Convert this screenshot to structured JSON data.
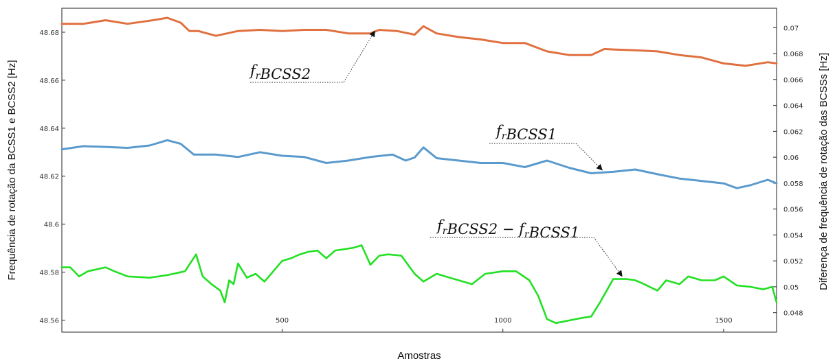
{
  "chart_data": {
    "type": "line",
    "xlabel": "Amostras",
    "ylabel_left": "Frequência de rotação da BCSS1 e BCSS2 [Hz]",
    "ylabel_right": "Diferença de frequência de rotação das BCSSs [Hz]",
    "xlim": [
      1,
      1620
    ],
    "ylim_left": [
      48.555,
      48.69
    ],
    "ylim_right": [
      0.0465,
      0.0715
    ],
    "x_ticks": [
      500,
      1000,
      1500
    ],
    "x_tick_labels": [
      "500",
      "1000",
      "1500"
    ],
    "y_left_ticks": [
      48.56,
      48.58,
      48.6,
      48.62,
      48.64,
      48.66,
      48.68
    ],
    "y_left_tick_labels": [
      "48.56",
      "48.58",
      "48.6",
      "48.62",
      "48.64",
      "48.66",
      "48.68"
    ],
    "y_right_ticks": [
      0.048,
      0.05,
      0.052,
      0.054,
      0.056,
      0.058,
      0.06,
      0.062,
      0.064,
      0.066,
      0.068,
      0.07
    ],
    "y_right_tick_labels": [
      "0.048",
      "0.05",
      "0.052",
      "0.054",
      "0.056",
      "0.058",
      "0.06",
      "0.062",
      "0.064",
      "0.066",
      "0.068",
      "0.07"
    ],
    "grid": false,
    "series": [
      {
        "name": "fᵣBCSS2",
        "axis": "left",
        "color": "#e07040",
        "x": [
          1,
          50,
          100,
          150,
          200,
          240,
          270,
          290,
          310,
          350,
          400,
          450,
          500,
          550,
          600,
          650,
          700,
          720,
          760,
          800,
          820,
          850,
          900,
          950,
          1000,
          1050,
          1100,
          1150,
          1200,
          1230,
          1250,
          1300,
          1350,
          1400,
          1450,
          1500,
          1550,
          1600,
          1620
        ],
        "values": [
          48.6835,
          48.6835,
          48.685,
          48.6835,
          48.6848,
          48.686,
          48.684,
          48.6805,
          48.6805,
          48.6785,
          48.6805,
          48.681,
          48.6805,
          48.681,
          48.681,
          48.6795,
          48.6795,
          48.681,
          48.6805,
          48.679,
          48.6825,
          48.6795,
          48.678,
          48.677,
          48.6755,
          48.6755,
          48.672,
          48.6705,
          48.6705,
          48.673,
          48.6728,
          48.6725,
          48.672,
          48.6705,
          48.6695,
          48.667,
          48.666,
          48.6675,
          48.667
        ]
      },
      {
        "name": "fᵣBCSS1",
        "axis": "left",
        "color": "#5a9acc",
        "x": [
          1,
          50,
          100,
          150,
          200,
          240,
          270,
          300,
          350,
          400,
          450,
          500,
          550,
          600,
          650,
          700,
          750,
          780,
          800,
          820,
          850,
          900,
          950,
          1000,
          1050,
          1100,
          1150,
          1200,
          1250,
          1300,
          1350,
          1400,
          1450,
          1500,
          1530,
          1560,
          1600,
          1620
        ],
        "values": [
          48.6312,
          48.6325,
          48.6322,
          48.6318,
          48.6328,
          48.635,
          48.6335,
          48.629,
          48.629,
          48.628,
          48.63,
          48.6285,
          48.628,
          48.6255,
          48.6265,
          48.628,
          48.629,
          48.6265,
          48.6278,
          48.632,
          48.6275,
          48.6265,
          48.6255,
          48.6255,
          48.6238,
          48.6265,
          48.6235,
          48.6212,
          48.6218,
          48.6228,
          48.6208,
          48.619,
          48.618,
          48.617,
          48.615,
          48.6162,
          48.6185,
          48.617
        ]
      },
      {
        "name": "fᵣBCSS2 − fᵣBCSS1",
        "axis": "right",
        "color": "#22e022",
        "x": [
          1,
          20,
          40,
          60,
          100,
          120,
          150,
          200,
          240,
          280,
          305,
          320,
          340,
          360,
          370,
          380,
          390,
          400,
          420,
          440,
          460,
          480,
          500,
          520,
          540,
          560,
          580,
          600,
          620,
          660,
          680,
          700,
          720,
          740,
          770,
          800,
          820,
          850,
          880,
          900,
          930,
          960,
          1000,
          1030,
          1060,
          1080,
          1100,
          1120,
          1150,
          1180,
          1200,
          1220,
          1250,
          1280,
          1300,
          1320,
          1350,
          1370,
          1400,
          1420,
          1450,
          1480,
          1500,
          1530,
          1560,
          1590,
          1610,
          1620
        ],
        "values": [
          0.0515,
          0.0515,
          0.0508,
          0.0512,
          0.0515,
          0.0512,
          0.0508,
          0.0507,
          0.0509,
          0.0512,
          0.0525,
          0.0508,
          0.0502,
          0.0497,
          0.0488,
          0.0505,
          0.0502,
          0.0518,
          0.0507,
          0.051,
          0.0504,
          0.0512,
          0.052,
          0.0522,
          0.0525,
          0.0527,
          0.0528,
          0.0522,
          0.0528,
          0.053,
          0.0532,
          0.0517,
          0.0524,
          0.0525,
          0.0524,
          0.051,
          0.0504,
          0.051,
          0.0507,
          0.0505,
          0.0502,
          0.051,
          0.0512,
          0.0512,
          0.0505,
          0.0493,
          0.0475,
          0.0472,
          0.0474,
          0.0476,
          0.0477,
          0.0488,
          0.0506,
          0.0506,
          0.0505,
          0.0502,
          0.0497,
          0.0505,
          0.0502,
          0.0508,
          0.0505,
          0.0505,
          0.0508,
          0.0501,
          0.05,
          0.0498,
          0.05,
          0.0488
        ]
      }
    ],
    "annotations": [
      {
        "series_index": 0,
        "label_main": "f",
        "label_sub": "r",
        "label_rest": "BCSS2",
        "x": 710,
        "y": 48.6805
      },
      {
        "series_index": 1,
        "label_main": "f",
        "label_sub": "r",
        "label_rest": "BCSS1",
        "x": 1225,
        "y": 48.6214
      },
      {
        "series_index": 2,
        "label_main": "f",
        "label_sub": "r",
        "label_rest": "BCSS2 − ",
        "label_main2": "f",
        "label_sub2": "r",
        "label_rest2": "BCSS1",
        "x": 1270,
        "y": 0.0506
      }
    ]
  }
}
